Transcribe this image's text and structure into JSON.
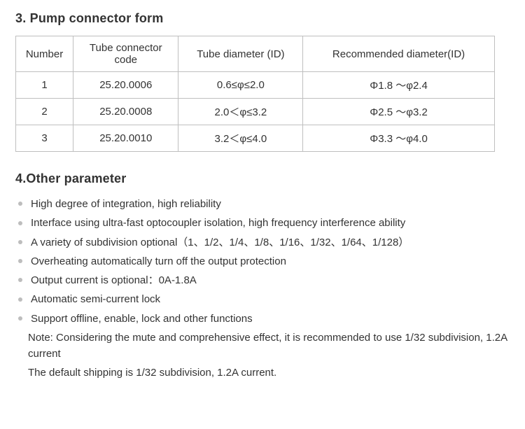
{
  "section3": {
    "title": "3. Pump connector form",
    "table": {
      "columns": [
        "Number",
        "Tube connector code",
        "Tube diameter (ID)",
        "Recommended diameter(ID)"
      ],
      "rows": [
        [
          "1",
          "25.20.0006",
          "0.6≤φ≤2.0",
          "Φ1.8 ～φ2.4"
        ],
        [
          "2",
          "25.20.0008",
          "2.0＜φ≤3.2",
          "Φ2.5 ～φ3.2"
        ],
        [
          "3",
          "25.20.0010",
          "3.2＜φ≤4.0",
          "Φ3.3 ～φ4.0"
        ]
      ],
      "col_widths_pct": [
        12,
        22,
        26,
        40
      ],
      "border_color": "#bfbfbf",
      "cell_fontsize": 15
    }
  },
  "section4": {
    "title": "4.Other parameter",
    "bullets": [
      "High degree of integration, high reliability",
      "Interface using ultra-fast optocoupler isolation, high frequency interference ability",
      "A variety of subdivision optional（1、1/2、1/4、1/8、1/16、1/32、1/64、1/128）",
      "Overheating automatically turn off the output protection",
      "Output current is optional：0A-1.8A",
      "Automatic semi-current lock",
      "Support offline, enable, lock and other functions"
    ],
    "notes": [
      "Note: Considering the mute and comprehensive effect, it is recommended to use 1/32 subdivision, 1.2A current",
      "The default shipping is 1/32 subdivision, 1.2A current."
    ],
    "bullet_color": "#bdbdbd"
  },
  "colors": {
    "text": "#333333",
    "background": "#ffffff"
  },
  "typography": {
    "title_fontsize": 18,
    "body_fontsize": 15,
    "font_family": "Segoe UI, Arial, sans-serif"
  }
}
